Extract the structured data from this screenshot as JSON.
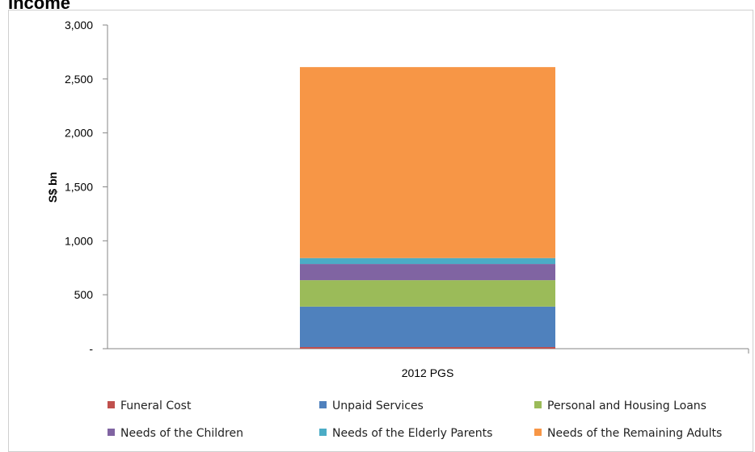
{
  "page": {
    "heading": "Income"
  },
  "chart_data": {
    "type": "bar",
    "stacked": true,
    "categories": [
      "2012 PGS"
    ],
    "series": [
      {
        "name": "Funeral Cost",
        "values": [
          15
        ],
        "color": "#C0504D"
      },
      {
        "name": "Unpaid Services",
        "values": [
          375
        ],
        "color": "#4F81BD"
      },
      {
        "name": "Personal and Housing Loans",
        "values": [
          245
        ],
        "color": "#9BBB59"
      },
      {
        "name": "Needs of the Children",
        "values": [
          150
        ],
        "color": "#8064A2"
      },
      {
        "name": "Needs of the Elderly Parents",
        "values": [
          55
        ],
        "color": "#4BACC6"
      },
      {
        "name": "Needs of the Remaining Adults",
        "values": [
          1770
        ],
        "color": "#F79646"
      }
    ],
    "ylabel": "S$ bn",
    "ylim": [
      0,
      3000
    ],
    "yticks": [
      {
        "value": 3000,
        "label": "3,000"
      },
      {
        "value": 2500,
        "label": "2,500"
      },
      {
        "value": 2000,
        "label": "2,000"
      },
      {
        "value": 1500,
        "label": "1,500"
      },
      {
        "value": 1000,
        "label": "1,000"
      },
      {
        "value": 500,
        "label": "500"
      },
      {
        "value": 0,
        "label": "-"
      }
    ],
    "grid": false,
    "legend": "bottom"
  }
}
